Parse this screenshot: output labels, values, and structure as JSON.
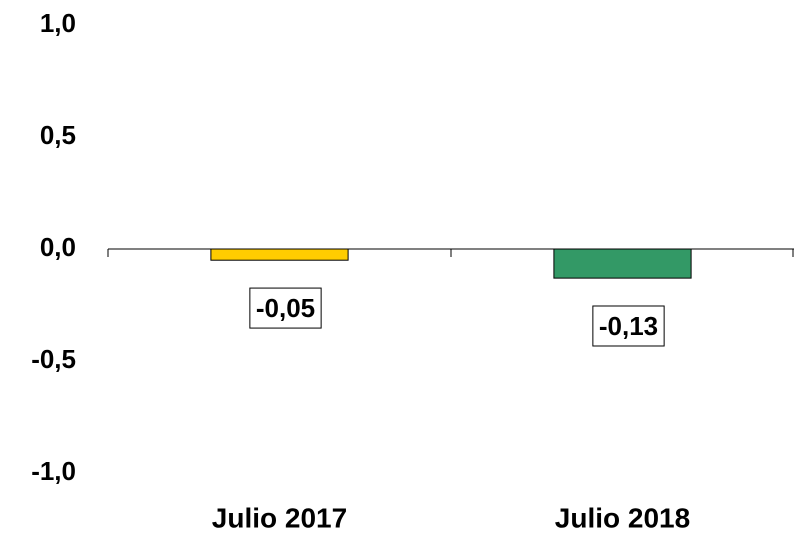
{
  "chart_data": {
    "type": "bar",
    "categories": [
      "Julio 2017",
      "Julio 2018"
    ],
    "values": [
      -0.05,
      -0.13
    ],
    "value_labels": [
      "-0,05",
      "-0,13"
    ],
    "colors": [
      "#ffcc00",
      "#339966"
    ],
    "ylim": [
      -1.0,
      1.0
    ],
    "yticks": [
      {
        "value": 1.0,
        "label": "1,0"
      },
      {
        "value": 0.5,
        "label": "0,5"
      },
      {
        "value": 0.0,
        "label": "0,0"
      },
      {
        "value": -0.5,
        "label": "-0,5"
      },
      {
        "value": -1.0,
        "label": "-1,0"
      }
    ],
    "grid": false
  }
}
